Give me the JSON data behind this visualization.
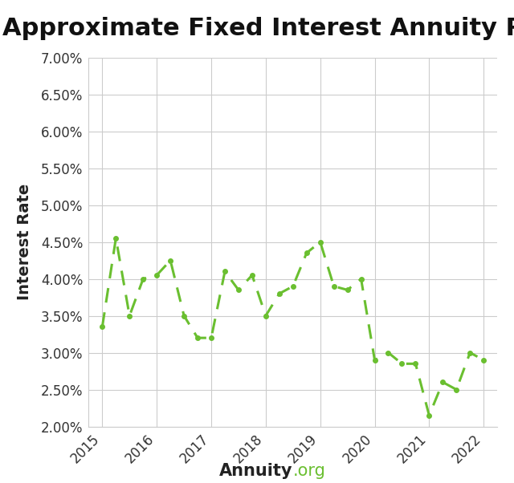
{
  "title": "Approximate Fixed Interest Annuity Rates",
  "xlabel_bold": "Annuity",
  "xlabel_normal": ".org",
  "xlabel_normal_color": "#6abf30",
  "ylabel": "Interest Rate",
  "background_color": "#ffffff",
  "line_color": "#6abf30",
  "grid_color": "#cccccc",
  "ylim": [
    0.02,
    0.07
  ],
  "yticks": [
    0.02,
    0.025,
    0.03,
    0.035,
    0.04,
    0.045,
    0.05,
    0.055,
    0.06,
    0.065,
    0.07
  ],
  "ytick_labels": [
    "2.00%",
    "2.50%",
    "3.00%",
    "3.50%",
    "4.00%",
    "4.50%",
    "5.00%",
    "5.50%",
    "6.00%",
    "6.50%",
    "7.00%"
  ],
  "x_values": [
    2015.0,
    2015.25,
    2015.5,
    2015.75,
    2016.0,
    2016.25,
    2016.5,
    2016.75,
    2017.0,
    2017.25,
    2017.5,
    2017.75,
    2018.0,
    2018.25,
    2018.5,
    2018.75,
    2019.0,
    2019.25,
    2019.5,
    2019.75,
    2020.0,
    2020.25,
    2020.5,
    2020.75,
    2021.0,
    2021.25,
    2021.5,
    2021.75,
    2022.0
  ],
  "y_values": [
    0.0335,
    0.0455,
    0.035,
    0.04,
    0.0405,
    0.0425,
    0.035,
    0.032,
    0.032,
    0.041,
    0.0385,
    0.0405,
    0.035,
    0.038,
    0.039,
    0.0435,
    0.045,
    0.039,
    0.0385,
    0.04,
    0.029,
    0.03,
    0.0285,
    0.0285,
    0.0215,
    0.026,
    0.025,
    0.03,
    0.029
  ],
  "xtick_positions": [
    2015,
    2016,
    2017,
    2018,
    2019,
    2020,
    2021,
    2022
  ],
  "xtick_labels": [
    "2015",
    "2016",
    "2017",
    "2018",
    "2019",
    "2020",
    "2021",
    "2022"
  ],
  "title_fontsize": 22,
  "ylabel_fontsize": 14,
  "tick_fontsize": 12,
  "xlabel_fontsize": 15
}
